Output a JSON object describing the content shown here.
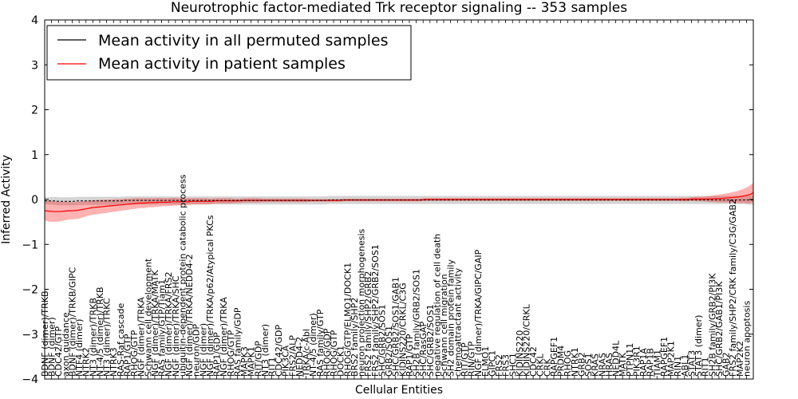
{
  "chart_data": {
    "type": "line",
    "title": "Neurotrophic factor-mediated Trk receptor signaling -- 353 samples",
    "xlabel": "Cellular Entities",
    "ylabel": "Inferred Activity",
    "ylim": [
      -4,
      4
    ],
    "yticks": [
      -4,
      -3,
      -2,
      -1,
      0,
      1,
      2,
      3,
      4
    ],
    "ytick_labels": [
      "−4",
      "−3",
      "−2",
      "−1",
      "0",
      "1",
      "2",
      "3",
      "4"
    ],
    "legend": {
      "position": "top-left",
      "entries": [
        {
          "label": "Mean activity in all permuted samples",
          "color": "#000000"
        },
        {
          "label": "Mean activity in patient samples",
          "color": "#ff0000"
        }
      ]
    },
    "n_points": 150,
    "labels": [
      "BDNF (dimer)/TRKB",
      "BDNF (dimer)",
      "CDC42/GTP",
      "axon guidance",
      "BDNF (dimer)/TRKB/GIPC",
      "NTF4 (dimer)",
      "NTRK2",
      "NT3 (dimer)/TRKB",
      "NT-4/5 (dimer)/TRKB",
      "NT3 (dimer)/TRKC",
      "NTRK3",
      "RAS-Raf cascade",
      "RAP1/GTP",
      "RHOG/GTP",
      "NGF (dimer)/TRKA",
      "Schwann cell development",
      "NGF (dimer)/TRKA/MATK",
      "RAS family/GTP/Tiam1",
      "NGF (dimer)/TRKA/FRS2",
      "NGF (dimer)/TRKA/SHC",
      "ubiquitin-dependent protein catabolic process",
      "NGF (dimer)/TRKA/NEDD4-2",
      "neuron/GDP",
      "NGF (dimer)",
      "NGF (dimer)/TRKA/p62/Atypical PKCs",
      "RAP1/GDP",
      "NGF (dimer)/TRKA",
      "RHOG/GTP",
      "RAS family/GDP",
      "MAPK3",
      "MAPK1",
      "RIT/GDP",
      "NT3 (dimer)",
      "RIT1",
      "CDC42/GDP",
      "PIK3CA",
      "FRS2/ALP",
      "NEDD4-2",
      "TRKA/c-Abl",
      "NT-4/5 (dimer)",
      "RAS family/GTP",
      "RHOG/GDP",
      "RHOG/GTP",
      "DOCK1",
      "RHOG/GTP/ELMO1/DOCK1",
      "BRS2 family/SHP2",
      "neuron projection morphogenesis",
      "FRS2 family/SHP2/GRB2",
      "FRS2 family/SHP2/GRB2/SOS1",
      "SHC/GRB2/SOS1",
      "GRB2/SOS1",
      "SHC/GRB2/SOS1/GAB1",
      "KIDINS220/CRKL/C3G",
      "RAP1/GTP",
      "SH2B family/GRB2/SOS1",
      "SHC/RasGAP",
      "SHC/GRB2/SOS1",
      "negative regulation of cell death",
      "Schwann cell migration",
      "SH2 domain protein family",
      "chemoattractant activity",
      "RIT/GTP",
      "RIN/GTP",
      "NGF (dimer)/TRKA/GIPC/GAIP",
      "ELMO1",
      "GIPC1",
      "FRS2",
      "FRS3",
      "SHC1",
      "KIDINS220",
      "KIDINS220/CRKL",
      "CDC42",
      "CRKL",
      "CRK",
      "RAPGEF1",
      "PRDM4",
      "RHOG",
      "NTRK1",
      "GRB2",
      "SOS1",
      "KRAS",
      "NRAS",
      "HRAS",
      "NEDD4L",
      "MATK",
      "PTPN11",
      "PIK3R1",
      "RAP1A",
      "RAP1B",
      "TIAM1",
      "RAPGEF1",
      "MAP2K1",
      "RIN1",
      "ABL1",
      "STAT3",
      "STAT3 (dimer)",
      "RIT1",
      "SH2B family/GRB2/PI3K",
      "SHC/GRB2/GAB1/PI3K",
      "GAB2",
      "FRS2 family/SHP2/CRK family/C3G/GAB2",
      "MAP2K2",
      "neuron apoptosis"
    ],
    "label_indices": [
      0,
      1,
      2,
      3,
      4,
      5,
      6,
      7,
      8,
      9,
      10,
      11,
      12,
      13,
      14,
      15,
      16,
      17,
      18,
      19,
      20,
      21,
      22,
      23,
      24,
      25,
      26,
      27,
      28,
      29,
      30,
      31,
      32,
      33,
      34,
      35,
      36,
      37,
      38,
      39,
      40,
      41,
      42,
      43,
      44,
      45,
      46,
      47,
      48,
      49,
      50,
      51,
      52,
      53,
      54,
      55,
      56,
      57,
      58,
      59,
      60,
      61,
      62,
      63,
      64,
      65,
      66,
      67,
      68,
      69,
      70,
      71,
      72,
      73,
      74,
      75,
      76,
      77,
      78,
      79,
      80,
      81,
      82,
      83,
      84,
      85,
      86,
      87,
      88,
      89,
      90,
      91,
      92,
      93,
      94,
      95,
      96,
      97,
      98,
      99,
      100,
      101,
      102,
      103
    ],
    "patient_mean": [
      -0.25,
      -0.26,
      -0.27,
      -0.27,
      -0.26,
      -0.25,
      -0.25,
      -0.24,
      -0.22,
      -0.2,
      -0.18,
      -0.17,
      -0.16,
      -0.15,
      -0.14,
      -0.13,
      -0.12,
      -0.11,
      -0.1,
      -0.09,
      -0.08,
      -0.08,
      -0.07,
      -0.07,
      -0.06,
      -0.06,
      -0.06,
      -0.05,
      -0.05,
      -0.05,
      -0.05,
      -0.04,
      -0.04,
      -0.04,
      -0.04,
      -0.04,
      -0.03,
      -0.03,
      -0.03,
      -0.03,
      -0.03,
      -0.03,
      -0.02,
      -0.02,
      -0.02,
      -0.02,
      -0.02,
      -0.02,
      -0.02,
      -0.02,
      -0.02,
      -0.02,
      -0.02,
      -0.02,
      -0.02,
      -0.02,
      -0.02,
      -0.02,
      -0.02,
      -0.02,
      -0.02,
      -0.02,
      -0.02,
      -0.01,
      -0.01,
      -0.01,
      -0.01,
      -0.01,
      -0.01,
      -0.01,
      -0.01,
      -0.01,
      -0.01,
      -0.01,
      -0.01,
      -0.01,
      -0.01,
      -0.01,
      -0.01,
      -0.01,
      0.0,
      0.0,
      0.0,
      0.0,
      0.0,
      0.0,
      0.0,
      0.0,
      0.0,
      0.0,
      0.0,
      0.0,
      0.0,
      0.0,
      0.0,
      0.0,
      0.0,
      0.0,
      0.0,
      0.0,
      0.0,
      0.0,
      0.0,
      0.0,
      0.0,
      0.0,
      0.0,
      0.0,
      0.0,
      0.0,
      0.0,
      0.0,
      0.0,
      0.0,
      0.0,
      0.0,
      0.0,
      0.0,
      0.0,
      0.0,
      0.0,
      0.0,
      0.0,
      0.0,
      0.0,
      0.0,
      0.0,
      0.0,
      0.0,
      0.0,
      0.0,
      0.0,
      0.0,
      0.0,
      0.0,
      0.0,
      0.01,
      0.01,
      0.01,
      0.01,
      0.01,
      0.02,
      0.02,
      0.03,
      0.04,
      0.05,
      0.06,
      0.08,
      0.1,
      0.15
    ],
    "patient_band": [
      0.22,
      0.23,
      0.23,
      0.22,
      0.21,
      0.2,
      0.19,
      0.19,
      0.18,
      0.17,
      0.16,
      0.16,
      0.15,
      0.15,
      0.14,
      0.14,
      0.13,
      0.13,
      0.12,
      0.12,
      0.11,
      0.11,
      0.1,
      0.1,
      0.1,
      0.09,
      0.09,
      0.09,
      0.08,
      0.08,
      0.08,
      0.07,
      0.07,
      0.07,
      0.07,
      0.06,
      0.06,
      0.06,
      0.06,
      0.06,
      0.05,
      0.05,
      0.05,
      0.05,
      0.05,
      0.05,
      0.04,
      0.04,
      0.04,
      0.04,
      0.04,
      0.04,
      0.04,
      0.04,
      0.04,
      0.04,
      0.03,
      0.03,
      0.03,
      0.03,
      0.03,
      0.03,
      0.03,
      0.03,
      0.03,
      0.03,
      0.03,
      0.03,
      0.03,
      0.03,
      0.03,
      0.03,
      0.03,
      0.03,
      0.03,
      0.03,
      0.03,
      0.03,
      0.03,
      0.03,
      0.03,
      0.03,
      0.03,
      0.03,
      0.03,
      0.03,
      0.03,
      0.03,
      0.03,
      0.03,
      0.03,
      0.03,
      0.03,
      0.03,
      0.03,
      0.03,
      0.03,
      0.03,
      0.03,
      0.03,
      0.03,
      0.03,
      0.03,
      0.03,
      0.03,
      0.03,
      0.03,
      0.03,
      0.03,
      0.03,
      0.03,
      0.03,
      0.03,
      0.03,
      0.03,
      0.03,
      0.03,
      0.03,
      0.03,
      0.03,
      0.03,
      0.03,
      0.03,
      0.03,
      0.03,
      0.03,
      0.03,
      0.03,
      0.03,
      0.03,
      0.03,
      0.03,
      0.03,
      0.03,
      0.04,
      0.04,
      0.04,
      0.05,
      0.05,
      0.06,
      0.07,
      0.08,
      0.09,
      0.1,
      0.11,
      0.12,
      0.14,
      0.16,
      0.19,
      0.22
    ],
    "permuted_mean": [
      -0.03,
      -0.03,
      -0.03,
      -0.04,
      -0.04,
      -0.04,
      -0.04,
      -0.03,
      -0.03,
      -0.03,
      -0.03,
      -0.03,
      -0.03,
      -0.03,
      -0.03,
      -0.03,
      -0.03,
      -0.02,
      -0.02,
      -0.02,
      -0.02,
      -0.02,
      -0.02,
      -0.02,
      -0.02,
      -0.02,
      -0.02,
      -0.02,
      -0.02,
      -0.02,
      -0.02,
      -0.02,
      -0.02,
      -0.02,
      -0.02,
      -0.02,
      -0.02,
      -0.02,
      -0.02,
      -0.02,
      -0.02,
      -0.02,
      -0.02,
      -0.02,
      -0.02,
      -0.02,
      -0.02,
      -0.02,
      -0.02,
      -0.02,
      -0.02,
      -0.02,
      -0.02,
      -0.02,
      -0.02,
      -0.02,
      -0.02,
      -0.02,
      -0.02,
      -0.02,
      -0.01,
      -0.01,
      -0.01,
      -0.01,
      -0.01,
      -0.01,
      -0.01,
      -0.01,
      -0.01,
      -0.01,
      -0.01,
      -0.01,
      -0.01,
      -0.01,
      -0.01,
      -0.01,
      -0.01,
      -0.01,
      -0.01,
      -0.01,
      -0.01,
      -0.01,
      -0.01,
      -0.01,
      -0.01,
      -0.01,
      -0.01,
      -0.01,
      -0.01,
      -0.01,
      -0.01,
      -0.01,
      -0.01,
      -0.01,
      -0.01,
      -0.01,
      -0.01,
      -0.01,
      -0.01,
      -0.01,
      -0.01,
      -0.01,
      -0.01,
      -0.01,
      -0.01,
      -0.01,
      -0.01,
      -0.01,
      -0.01,
      -0.01,
      -0.01,
      -0.01,
      -0.01,
      -0.01,
      -0.01,
      -0.01,
      -0.01,
      -0.01,
      -0.01,
      -0.01,
      -0.01,
      -0.01,
      -0.01,
      -0.01,
      -0.01,
      -0.01,
      -0.01,
      -0.01,
      -0.01,
      -0.01,
      -0.01,
      -0.01,
      -0.01,
      -0.01,
      -0.01,
      -0.01,
      -0.01,
      -0.01,
      -0.01,
      -0.01,
      -0.01,
      -0.01,
      -0.01,
      -0.01,
      -0.01,
      -0.01,
      -0.01,
      -0.01,
      -0.01,
      -0.01
    ],
    "permuted_band": [
      0.08,
      0.08,
      0.09,
      0.09,
      0.09,
      0.09,
      0.09,
      0.09,
      0.09,
      0.09,
      0.09,
      0.09,
      0.09,
      0.09,
      0.09,
      0.09,
      0.09,
      0.09,
      0.09,
      0.09,
      0.09,
      0.09,
      0.09,
      0.09,
      0.09,
      0.09,
      0.09,
      0.09,
      0.09,
      0.09,
      0.09,
      0.09,
      0.09,
      0.09,
      0.09,
      0.09,
      0.09,
      0.09,
      0.09,
      0.09,
      0.09,
      0.09,
      0.09,
      0.09,
      0.09,
      0.09,
      0.09,
      0.09,
      0.09,
      0.09,
      0.09,
      0.09,
      0.09,
      0.09,
      0.09,
      0.09,
      0.09,
      0.09,
      0.09,
      0.09,
      0.09,
      0.09,
      0.09,
      0.09,
      0.09,
      0.09,
      0.09,
      0.09,
      0.09,
      0.09,
      0.09,
      0.09,
      0.09,
      0.09,
      0.09,
      0.09,
      0.09,
      0.09,
      0.09,
      0.09,
      0.09,
      0.09,
      0.09,
      0.09,
      0.09,
      0.09,
      0.09,
      0.09,
      0.09,
      0.09,
      0.09,
      0.09,
      0.09,
      0.09,
      0.09,
      0.09,
      0.09,
      0.09,
      0.09,
      0.09,
      0.09,
      0.09,
      0.09,
      0.09,
      0.09,
      0.09,
      0.09,
      0.09,
      0.09,
      0.09,
      0.09,
      0.09,
      0.09,
      0.09,
      0.09,
      0.09,
      0.09,
      0.09,
      0.09,
      0.09,
      0.09,
      0.09,
      0.09,
      0.09,
      0.09,
      0.09,
      0.09,
      0.09,
      0.09,
      0.09,
      0.09,
      0.09,
      0.09,
      0.09,
      0.09,
      0.09,
      0.09,
      0.09,
      0.09,
      0.09,
      0.09,
      0.09,
      0.09,
      0.09,
      0.09,
      0.09,
      0.09,
      0.09,
      0.1,
      0.11
    ],
    "colors": {
      "patient_line": "#ff0000",
      "patient_band": "#ff0000",
      "permuted_line": "#000000",
      "permuted_band": "#aaaaaa",
      "frame": "#000000"
    }
  }
}
